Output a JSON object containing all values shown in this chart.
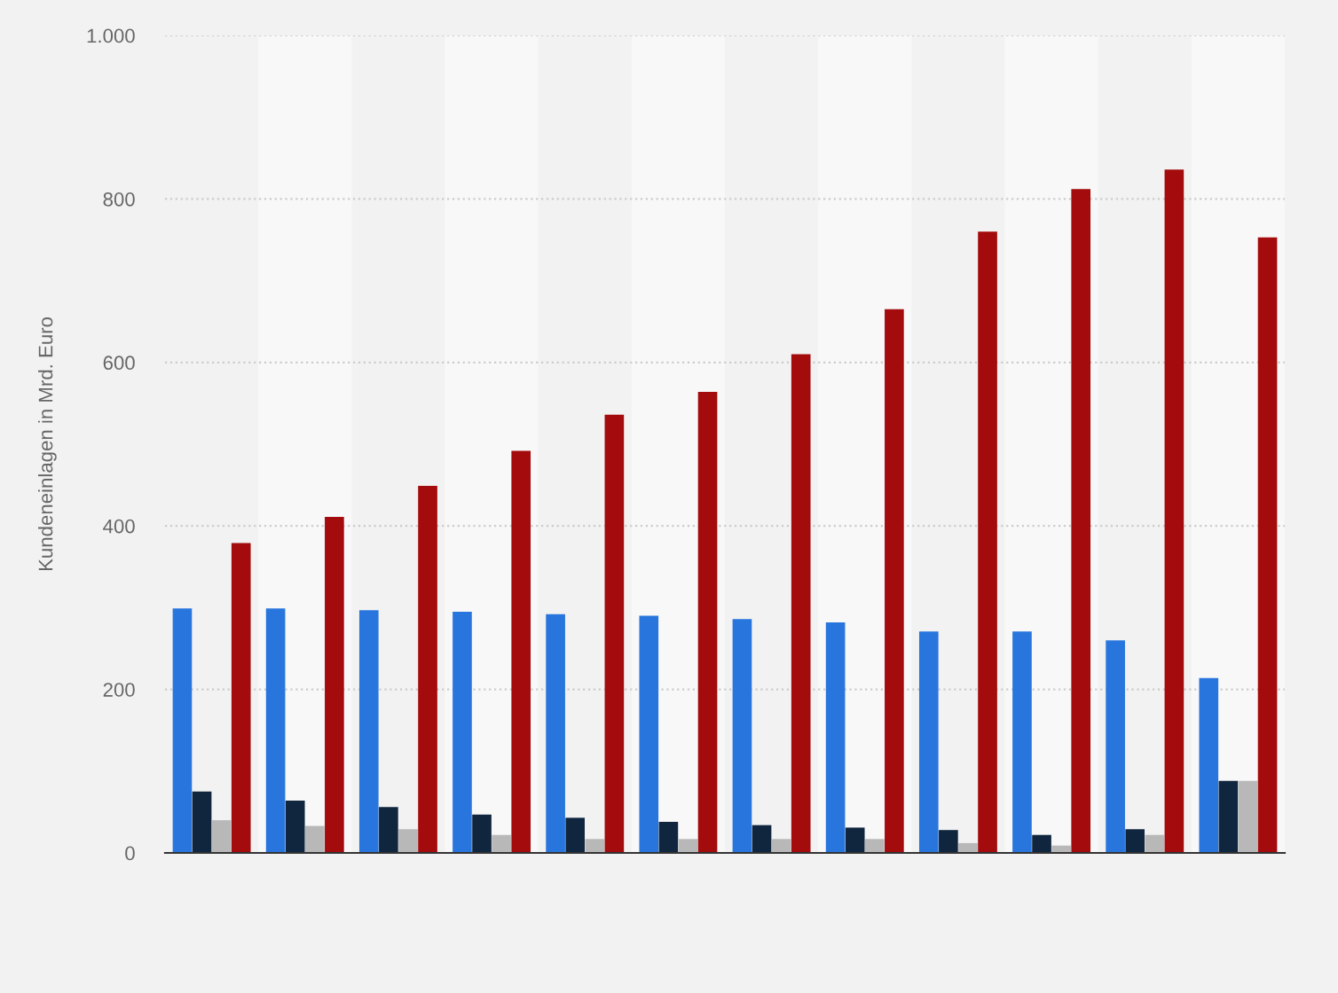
{
  "chart_data": {
    "type": "bar",
    "ylabel": "Kundeneinlagen in Mrd. Euro",
    "categories": [
      null,
      null,
      null,
      null,
      null,
      null,
      null,
      null,
      null,
      null,
      null,
      null
    ],
    "series": [
      {
        "color": "#2876dd",
        "values": [
          299,
          299,
          297,
          295,
          292,
          290,
          286,
          282,
          271,
          271,
          260,
          214
        ]
      },
      {
        "color": "#10263f",
        "values": [
          75,
          64,
          56,
          47,
          43,
          38,
          34,
          31,
          28,
          22,
          29,
          88
        ]
      },
      {
        "color": "#b8b8b8",
        "values": [
          40,
          33,
          29,
          22,
          17,
          17,
          17,
          17,
          12,
          9,
          22,
          88
        ]
      },
      {
        "color": "#a30b0c",
        "values": [
          379,
          411,
          449,
          492,
          536,
          564,
          610,
          665,
          760,
          812,
          836,
          753
        ]
      }
    ],
    "ylim": [
      0,
      1000
    ],
    "yticks": [
      0,
      200,
      400,
      600,
      800,
      {
        "value": 1000,
        "label": "1.000"
      }
    ],
    "grid": "y",
    "legend": false
  }
}
